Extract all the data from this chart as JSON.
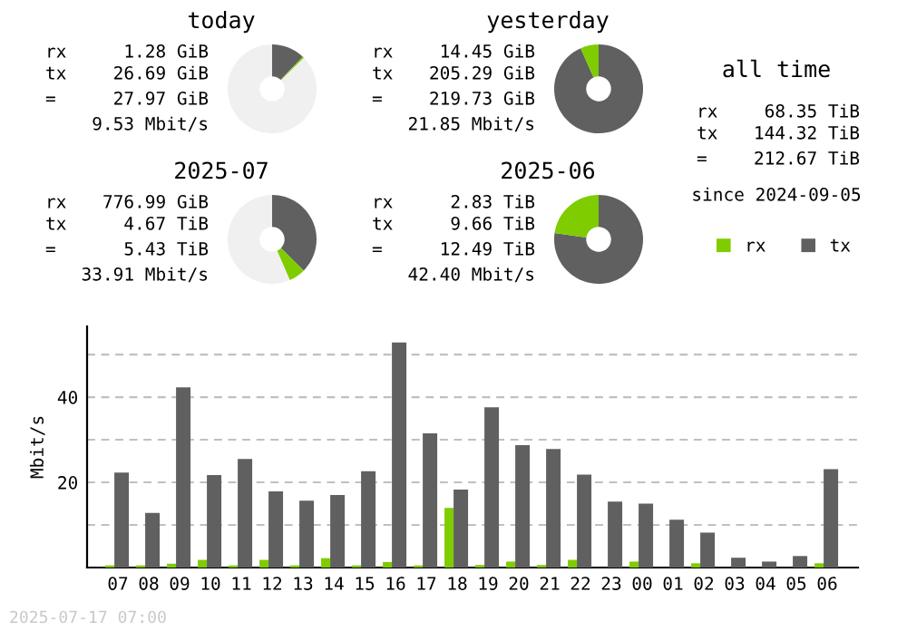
{
  "chart_data": [
    {
      "type": "donut",
      "title": "today",
      "categories": [
        null,
        null,
        null
      ],
      "values": [
        12.1,
        0.6,
        87.3
      ],
      "colors": [
        "#606060",
        "#7fcc00",
        "#f0f0f0"
      ],
      "annotations": [
        "rx 1.28 GiB",
        "tx 26.69 GiB",
        "= 27.97 GiB",
        "9.53 Mbit/s"
      ]
    },
    {
      "type": "donut",
      "title": "yesterday",
      "categories": [
        null,
        null
      ],
      "values": [
        93.4,
        6.6
      ],
      "colors": [
        "#606060",
        "#7fcc00"
      ],
      "annotations": [
        "rx 14.45 GiB",
        "tx 205.29 GiB",
        "= 219.73 GiB",
        "21.85 Mbit/s"
      ]
    },
    {
      "type": "other",
      "title": "all time",
      "annotations": [
        "rx 68.35 TiB",
        "tx 144.32 TiB",
        "= 212.67 TiB",
        "since 2024-09-05"
      ]
    },
    {
      "type": "donut",
      "title": "2025-07",
      "categories": [
        null,
        null,
        null
      ],
      "values": [
        37.4,
        6.1,
        56.5
      ],
      "colors": [
        "#606060",
        "#7fcc00",
        "#f0f0f0"
      ],
      "annotations": [
        "rx 776.99 GiB",
        "tx 4.67 TiB",
        "= 5.43 TiB",
        "33.91 Mbit/s"
      ]
    },
    {
      "type": "donut",
      "title": "2025-06",
      "categories": [
        null,
        null
      ],
      "values": [
        77.3,
        22.7
      ],
      "colors": [
        "#606060",
        "#7fcc00"
      ],
      "annotations": [
        "rx 2.83 TiB",
        "tx 9.66 TiB",
        "= 12.49 TiB",
        "42.40 Mbit/s"
      ]
    },
    {
      "type": "bar",
      "ylabel": "Mbit/s",
      "legend": "top right",
      "grid": "y",
      "line_style": "dashed",
      "categories": [
        "07",
        "08",
        "09",
        "10",
        "11",
        "12",
        "13",
        "14",
        "15",
        "16",
        "17",
        "18",
        "19",
        "20",
        "21",
        "22",
        "23",
        "00",
        "01",
        "02",
        "03",
        "04",
        "05",
        "06"
      ],
      "series": [
        {
          "name": "rx",
          "color": "#7fcc00",
          "values": [
            0.5,
            0.5,
            0.9,
            1.8,
            0.5,
            1.8,
            0.5,
            2.2,
            0.5,
            1.3,
            0.5,
            14.0,
            0.6,
            1.4,
            0.6,
            1.8,
            0.0,
            1.4,
            0.0,
            1.0,
            0.0,
            0.0,
            0.0,
            1.0
          ]
        },
        {
          "name": "tx",
          "color": "#606060",
          "values": [
            22.3,
            12.8,
            42.3,
            21.7,
            25.5,
            17.9,
            15.7,
            17.0,
            22.6,
            52.8,
            31.5,
            18.3,
            37.6,
            28.7,
            27.8,
            21.8,
            15.5,
            15.0,
            11.2,
            8.2,
            2.3,
            1.4,
            2.7,
            23.1
          ]
        }
      ],
      "ylim": [
        0,
        56.6
      ],
      "yticks": [
        {
          "value": 10,
          "label": null
        },
        20,
        {
          "value": 30,
          "label": null
        },
        40,
        {
          "value": 50,
          "label": null
        }
      ],
      "annotations": [
        "2025-07-17 07:00"
      ]
    }
  ]
}
